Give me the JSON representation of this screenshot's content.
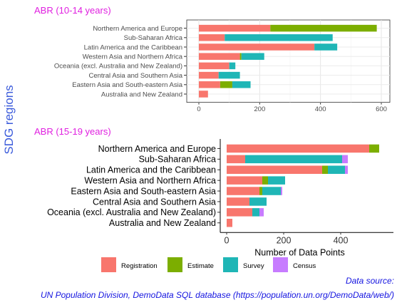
{
  "y_axis_label": "SDG regions",
  "legend": [
    {
      "name": "Registration",
      "color": "#F8766D"
    },
    {
      "name": "Estimate",
      "color": "#7CAE00"
    },
    {
      "name": "Survey",
      "color": "#1FB6B6"
    },
    {
      "name": "Census",
      "color": "#C77CFF"
    }
  ],
  "source_line1": "Data source:",
  "source_line2": "UN Population Division, DemoData SQL database (https://population.un.org/DemoData/web/)",
  "chart_data": [
    {
      "type": "bar",
      "orientation": "horizontal",
      "stacked": true,
      "title": "ABR (10-14 years)",
      "xlabel": "",
      "ylabel": "SDG regions",
      "xlim": [
        0,
        600
      ],
      "xticks": [
        0,
        200,
        400,
        600
      ],
      "grid": true,
      "categories": [
        "Northern America and Europe",
        "Sub-Saharan Africa",
        "Latin America and the Caribbean",
        "Western Asia and Northern Africa",
        "Oceania (excl. Australia and New Zealand)",
        "Central Asia and Southern Asia",
        "Eastern Asia and South-eastern Asia",
        "Australia and New Zealand"
      ],
      "series": [
        {
          "name": "Registration",
          "color": "#F8766D",
          "values": [
            235,
            85,
            380,
            135,
            100,
            65,
            70,
            30
          ]
        },
        {
          "name": "Estimate",
          "color": "#7CAE00",
          "values": [
            350,
            0,
            0,
            5,
            0,
            0,
            40,
            0
          ]
        },
        {
          "name": "Survey",
          "color": "#1FB6B6",
          "values": [
            0,
            355,
            75,
            75,
            20,
            70,
            60,
            0
          ]
        },
        {
          "name": "Census",
          "color": "#C77CFF",
          "values": [
            0,
            0,
            0,
            0,
            0,
            0,
            0,
            0
          ]
        }
      ]
    },
    {
      "type": "bar",
      "orientation": "horizontal",
      "stacked": true,
      "title": "ABR (15-19 years)",
      "xlabel": "Number of Data Points",
      "ylabel": "SDG regions",
      "xlim": [
        0,
        550
      ],
      "xticks": [
        0,
        200,
        400
      ],
      "grid": false,
      "categories": [
        "Northern America and Europe",
        "Sub-Saharan Africa",
        "Latin America and the Caribbean",
        "Western Asia and Northern Africa",
        "Eastern Asia and South-eastern Asia",
        "Central Asia and Southern Asia",
        "Oceania (excl. Australia and New Zealand)",
        "Australia and New Zealand"
      ],
      "series": [
        {
          "name": "Registration",
          "color": "#F8766D",
          "values": [
            500,
            65,
            335,
            125,
            115,
            80,
            90,
            20
          ]
        },
        {
          "name": "Estimate",
          "color": "#7CAE00",
          "values": [
            35,
            0,
            20,
            20,
            10,
            0,
            0,
            0
          ]
        },
        {
          "name": "Survey",
          "color": "#1FB6B6",
          "values": [
            0,
            340,
            60,
            60,
            65,
            60,
            25,
            0
          ]
        },
        {
          "name": "Census",
          "color": "#C77CFF",
          "values": [
            0,
            20,
            10,
            0,
            5,
            0,
            15,
            0
          ]
        }
      ]
    }
  ]
}
